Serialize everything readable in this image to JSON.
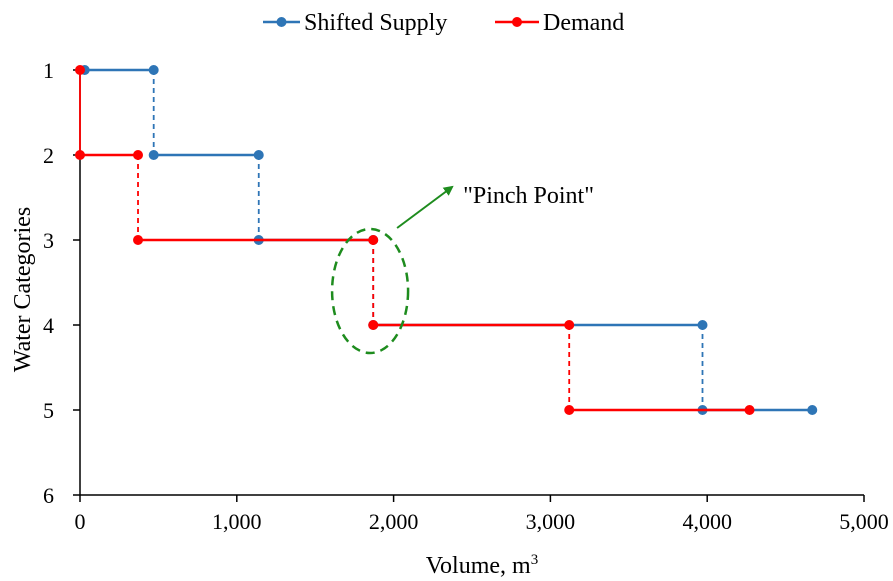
{
  "chart_data": {
    "type": "line",
    "subtype": "step-composite-curve",
    "xlabel": "Volume, m",
    "xlabel_superscript": "3",
    "ylabel": "Water Categories",
    "xlim": [
      0,
      5000
    ],
    "ylim": [
      1,
      6
    ],
    "y_inverted": true,
    "xticks": [
      0,
      1000,
      2000,
      3000,
      4000,
      5000
    ],
    "xtick_labels": [
      "0",
      "1,000",
      "2,000",
      "3,000",
      "4,000",
      "5,000"
    ],
    "yticks": [
      1,
      2,
      3,
      4,
      5,
      6
    ],
    "ytick_labels": [
      "1",
      "2",
      "3",
      "4",
      "5",
      "6"
    ],
    "grid": false,
    "legend_position": "top-center",
    "series": [
      {
        "name": "Shifted Supply",
        "color": "#2E75B6",
        "points": [
          {
            "x": 30,
            "y": 1
          },
          {
            "x": 470,
            "y": 1
          },
          {
            "x": 470,
            "y": 2
          },
          {
            "x": 1140,
            "y": 2
          },
          {
            "x": 1140,
            "y": 3
          },
          {
            "x": 1870,
            "y": 3
          },
          {
            "x": 1870,
            "y": 4
          },
          {
            "x": 3970,
            "y": 4
          },
          {
            "x": 3970,
            "y": 5
          },
          {
            "x": 4670,
            "y": 5
          }
        ]
      },
      {
        "name": "Demand",
        "color": "#FF0000",
        "points": [
          {
            "x": 0,
            "y": 1
          },
          {
            "x": 0,
            "y": 2
          },
          {
            "x": 370,
            "y": 2
          },
          {
            "x": 370,
            "y": 3
          },
          {
            "x": 1870,
            "y": 3
          },
          {
            "x": 1870,
            "y": 4
          },
          {
            "x": 3120,
            "y": 4
          },
          {
            "x": 3120,
            "y": 5
          },
          {
            "x": 4270,
            "y": 5
          }
        ]
      }
    ],
    "annotations": [
      {
        "text": "\"Pinch Point\"",
        "color": "#1E8C1E",
        "target_x": 1850,
        "target_y": 3.6
      }
    ]
  }
}
